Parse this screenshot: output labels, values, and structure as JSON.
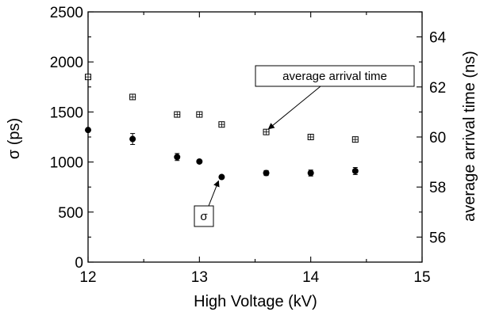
{
  "chart_data": {
    "type": "scatter",
    "xlabel": "High Voltage (kV)",
    "ylabel_left": "σ (ps)",
    "ylabel_right": "average arrival time (ns)",
    "xlim": [
      12,
      15
    ],
    "ylim_left": [
      0,
      2500
    ],
    "ylim_right": [
      55,
      65
    ],
    "xticks": [
      "12",
      "13",
      "14",
      "15"
    ],
    "yticks_left": [
      "0",
      "500",
      "1000",
      "1500",
      "2000",
      "2500"
    ],
    "yticks_right": [
      "56",
      "58",
      "60",
      "62",
      "64"
    ],
    "series": [
      {
        "name": "σ",
        "axis": "left",
        "marker": "filled-circle",
        "points": [
          {
            "x": 12.0,
            "y": 1320,
            "err": 0
          },
          {
            "x": 12.4,
            "y": 1230,
            "err": 55
          },
          {
            "x": 12.8,
            "y": 1050,
            "err": 35
          },
          {
            "x": 13.0,
            "y": 1005,
            "err": 0
          },
          {
            "x": 13.2,
            "y": 850,
            "err": 0
          },
          {
            "x": 13.6,
            "y": 890,
            "err": 25
          },
          {
            "x": 14.0,
            "y": 890,
            "err": 30
          },
          {
            "x": 14.4,
            "y": 910,
            "err": 35
          }
        ]
      },
      {
        "name": "average arrival time",
        "axis": "right",
        "marker": "gridded-square",
        "points": [
          {
            "x": 12.0,
            "y": 62.4
          },
          {
            "x": 12.4,
            "y": 61.6
          },
          {
            "x": 12.8,
            "y": 60.9
          },
          {
            "x": 13.0,
            "y": 60.9
          },
          {
            "x": 13.2,
            "y": 60.5
          },
          {
            "x": 13.6,
            "y": 60.2
          },
          {
            "x": 14.0,
            "y": 60.0
          },
          {
            "x": 14.4,
            "y": 59.9
          }
        ]
      }
    ],
    "annotations": [
      {
        "text": "average arrival time",
        "target_series": "average arrival time",
        "target_x": 13.6
      },
      {
        "text": "σ",
        "target_series": "σ",
        "target_x": 13.2
      }
    ]
  }
}
